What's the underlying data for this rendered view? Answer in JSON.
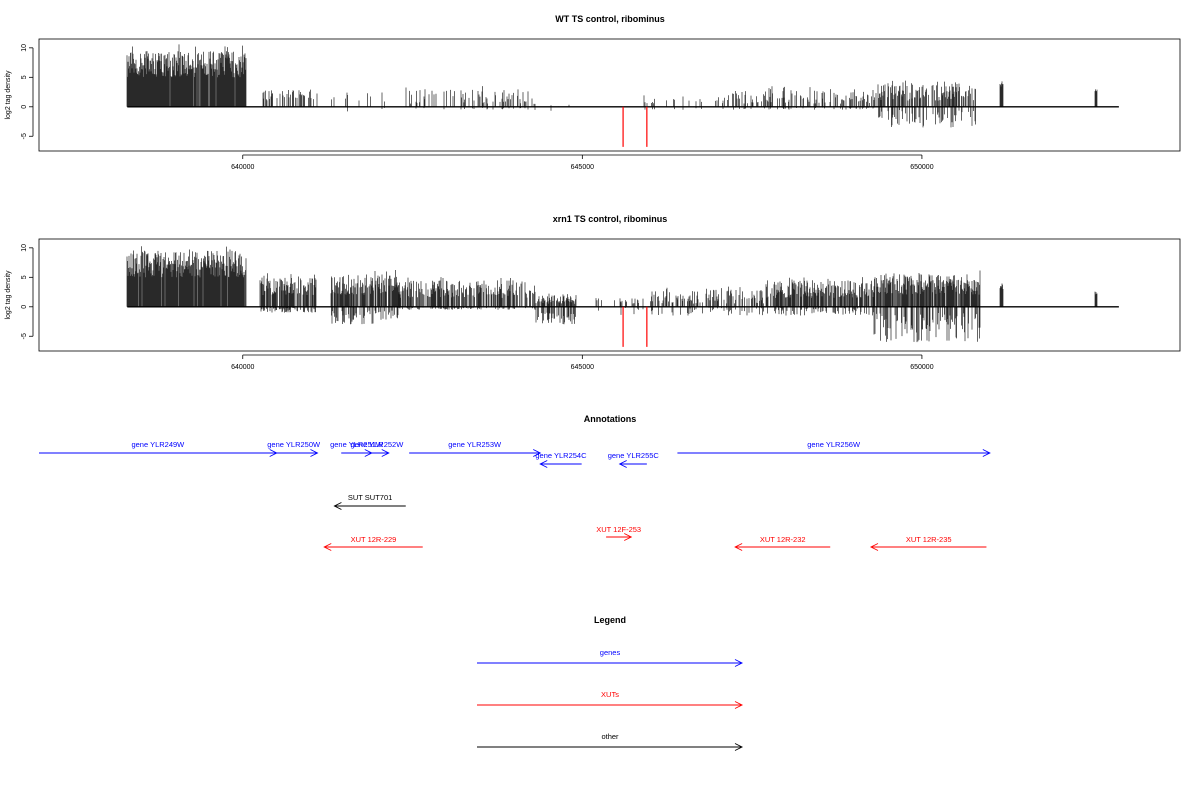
{
  "colors": {
    "genes": "#0000ff",
    "xuts": "#ff0000",
    "other": "#000000",
    "signal": "#000000",
    "marker": "#ff0000"
  },
  "chart_data": [
    {
      "type": "bar",
      "panel": "wt",
      "title": "WT TS control, ribominus",
      "ylabel": "log2 tag density",
      "ylim": [
        -7.5,
        11.5
      ],
      "xlim": [
        637000,
        653800
      ],
      "yticks": [
        -5,
        0,
        5,
        10
      ],
      "xticks": [
        640000,
        645000,
        650000
      ],
      "grid": false,
      "markers": [
        645600,
        645950
      ],
      "series": [
        {
          "segments": [
            {
              "start": 638300,
              "end": 640050,
              "pos": [
                5,
                9.5
              ],
              "neg": [
                0,
                0
              ],
              "density": 0.95
            },
            {
              "start": 640300,
              "end": 641100,
              "pos": [
                1,
                3
              ],
              "neg": [
                0,
                0
              ],
              "density": 0.35
            },
            {
              "start": 641300,
              "end": 642100,
              "pos": [
                0.5,
                2.5
              ],
              "neg": [
                0,
                1
              ],
              "density": 0.1
            },
            {
              "start": 642300,
              "end": 644300,
              "pos": [
                0.5,
                3
              ],
              "neg": [
                0,
                0.5
              ],
              "density": 0.25
            },
            {
              "start": 644300,
              "end": 644800,
              "pos": [
                0,
                0.5
              ],
              "neg": [
                0.5,
                2
              ],
              "density": 0.1
            },
            {
              "start": 645900,
              "end": 647200,
              "pos": [
                0.5,
                2
              ],
              "neg": [
                0,
                0.5
              ],
              "density": 0.15
            },
            {
              "start": 647200,
              "end": 649300,
              "pos": [
                0.5,
                3
              ],
              "neg": [
                0,
                0.5
              ],
              "density": 0.35
            },
            {
              "start": 649300,
              "end": 650800,
              "pos": [
                1,
                4
              ],
              "neg": [
                0.5,
                3.5
              ],
              "density": 0.6
            },
            {
              "start": 651150,
              "end": 651200,
              "pos": [
                3,
                4.5
              ],
              "neg": [
                0,
                0
              ],
              "density": 1
            },
            {
              "start": 652550,
              "end": 652580,
              "pos": [
                2.5,
                3
              ],
              "neg": [
                0,
                0
              ],
              "density": 1
            }
          ]
        }
      ]
    },
    {
      "type": "bar",
      "panel": "xrn1",
      "title": "xrn1 TS control, ribominus",
      "ylabel": "log2 tag density",
      "ylim": [
        -7.5,
        11.5
      ],
      "xlim": [
        637000,
        653800
      ],
      "yticks": [
        -5,
        0,
        5,
        10
      ],
      "xticks": [
        640000,
        645000,
        650000
      ],
      "grid": false,
      "markers": [
        645600,
        645950
      ],
      "series": [
        {
          "segments": [
            {
              "start": 638300,
              "end": 640050,
              "pos": [
                5,
                9.5
              ],
              "neg": [
                0,
                0
              ],
              "density": 0.95
            },
            {
              "start": 640250,
              "end": 641100,
              "pos": [
                2,
                5
              ],
              "neg": [
                0,
                1
              ],
              "density": 0.7
            },
            {
              "start": 641300,
              "end": 642300,
              "pos": [
                2,
                5.5
              ],
              "neg": [
                0.5,
                3
              ],
              "density": 0.75
            },
            {
              "start": 642300,
              "end": 644300,
              "pos": [
                1.5,
                4.5
              ],
              "neg": [
                0,
                0.5
              ],
              "density": 0.6
            },
            {
              "start": 644300,
              "end": 644900,
              "pos": [
                0.5,
                2
              ],
              "neg": [
                1,
                3
              ],
              "density": 0.7
            },
            {
              "start": 645200,
              "end": 645900,
              "pos": [
                0.5,
                1.5
              ],
              "neg": [
                0,
                1.5
              ],
              "density": 0.2
            },
            {
              "start": 646000,
              "end": 647700,
              "pos": [
                0.5,
                3
              ],
              "neg": [
                0,
                1.5
              ],
              "density": 0.4
            },
            {
              "start": 647700,
              "end": 649300,
              "pos": [
                1.5,
                4.5
              ],
              "neg": [
                0,
                1.5
              ],
              "density": 0.7
            },
            {
              "start": 649300,
              "end": 650850,
              "pos": [
                2,
                5.5
              ],
              "neg": [
                1,
                6
              ],
              "density": 0.85
            },
            {
              "start": 651150,
              "end": 651200,
              "pos": [
                3,
                4
              ],
              "neg": [
                0,
                0
              ],
              "density": 1
            },
            {
              "start": 652550,
              "end": 652580,
              "pos": [
                2,
                2.6
              ],
              "neg": [
                0,
                0
              ],
              "density": 1
            }
          ]
        }
      ]
    }
  ],
  "annotations": {
    "title": "Annotations",
    "features": [
      {
        "label": "gene YLR249W",
        "type": "genes",
        "start": 637000,
        "end": 640500,
        "dir": "right",
        "row": 0
      },
      {
        "label": "gene YLR250W",
        "type": "genes",
        "start": 640400,
        "end": 641100,
        "dir": "right",
        "row": 0
      },
      {
        "label": "gene YLR251W",
        "type": "genes",
        "start": 641450,
        "end": 641900,
        "dir": "right",
        "row": 0
      },
      {
        "label": "gene YLR252W",
        "type": "genes",
        "start": 641800,
        "end": 642150,
        "dir": "right",
        "row": 0
      },
      {
        "label": "gene YLR253W",
        "type": "genes",
        "start": 642450,
        "end": 644380,
        "dir": "right",
        "row": 0
      },
      {
        "label": "gene YLR254C",
        "type": "genes",
        "start": 644380,
        "end": 644990,
        "dir": "left",
        "row": 1
      },
      {
        "label": "gene YLR255C",
        "type": "genes",
        "start": 645550,
        "end": 645950,
        "dir": "left",
        "row": 1
      },
      {
        "label": "gene YLR256W",
        "type": "genes",
        "start": 646400,
        "end": 651000,
        "dir": "right",
        "row": 0
      },
      {
        "label": "SUT SUT701",
        "type": "other",
        "start": 641350,
        "end": 642400,
        "dir": "left",
        "row": 2
      },
      {
        "label": "XUT 12R-229",
        "type": "xuts",
        "start": 641200,
        "end": 642650,
        "dir": "left",
        "row": 3
      },
      {
        "label": "XUT 12F-253",
        "type": "xuts",
        "start": 645350,
        "end": 645720,
        "dir": "right",
        "row": 4
      },
      {
        "label": "XUT 12R-232",
        "type": "xuts",
        "start": 647250,
        "end": 648650,
        "dir": "left",
        "row": 3
      },
      {
        "label": "XUT 12R-235",
        "type": "xuts",
        "start": 649250,
        "end": 650950,
        "dir": "left",
        "row": 3
      }
    ]
  },
  "legend": {
    "title": "Legend",
    "items": [
      {
        "label": "genes",
        "type": "genes"
      },
      {
        "label": "XUTs",
        "type": "xuts"
      },
      {
        "label": "other",
        "type": "other"
      }
    ]
  }
}
